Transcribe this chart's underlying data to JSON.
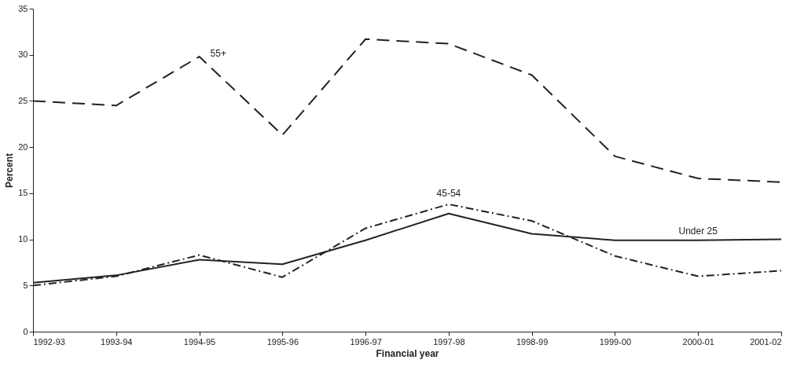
{
  "chart_data": {
    "type": "line",
    "xlabel": "Financial year",
    "ylabel": "Percent",
    "categories": [
      "1992-93",
      "1993-94",
      "1994-95",
      "1995-96",
      "1996-97",
      "1997-98",
      "1998-99",
      "1999-00",
      "2000-01",
      "2001-02"
    ],
    "series": [
      {
        "name": "55+",
        "color": "#222222",
        "line_style": "dashed",
        "values": [
          25.0,
          24.5,
          29.8,
          21.3,
          31.7,
          31.2,
          27.8,
          19.0,
          16.6,
          16.2
        ]
      },
      {
        "name": "45-54",
        "color": "#222222",
        "line_style": "dotted",
        "values": [
          5.0,
          6.0,
          8.3,
          5.9,
          11.2,
          13.8,
          12.0,
          8.2,
          6.0,
          6.6
        ]
      },
      {
        "name": "Under 25",
        "color": "#222222",
        "line_style": "solid",
        "values": [
          5.3,
          6.1,
          7.8,
          7.3,
          9.9,
          12.8,
          10.6,
          9.9,
          9.9,
          10.0
        ]
      }
    ],
    "ylim": [
      0,
      35
    ],
    "yticks": [
      0,
      5,
      10,
      15,
      20,
      25,
      30,
      35
    ],
    "grid": false,
    "legend": false,
    "marker": "none"
  }
}
